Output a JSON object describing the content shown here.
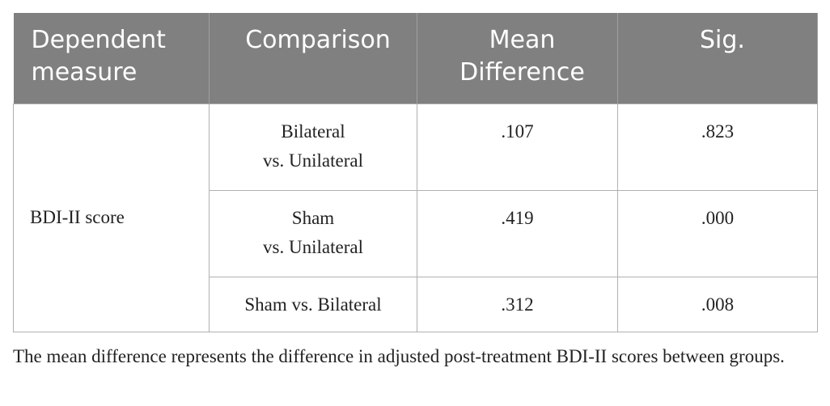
{
  "table": {
    "header": [
      "Dependent\nmeasure",
      "Comparison",
      "Mean\nDifference",
      "Sig."
    ],
    "dependent_measure": "BDI-II score",
    "rows": [
      {
        "comparison": "Bilateral\nvs. Unilateral",
        "mean_difference": ".107",
        "sig": ".823"
      },
      {
        "comparison": "Sham\nvs. Unilateral",
        "mean_difference": ".419",
        "sig": ".000"
      },
      {
        "comparison": "Sham vs. Bilateral",
        "mean_difference": ".312",
        "sig": ".008"
      }
    ]
  },
  "note": "The mean difference represents the difference in adjusted post-treatment BDI-II scores between groups."
}
